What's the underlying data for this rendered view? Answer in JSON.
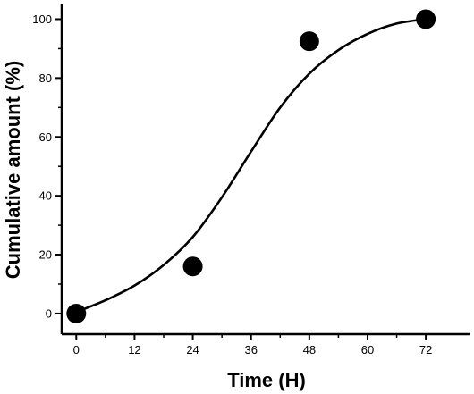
{
  "chart_data": {
    "type": "scatter",
    "xlabel": "Time (H)",
    "ylabel": "Cumulative amount (%)",
    "xlim": [
      -3,
      81
    ],
    "ylim": [
      -7,
      105
    ],
    "xticks": [
      0,
      12,
      24,
      36,
      48,
      60,
      72
    ],
    "yticks": [
      0,
      20,
      40,
      60,
      80,
      100
    ],
    "x_tick_labels": [
      "0",
      "12",
      "24",
      "36",
      "48",
      "60",
      "72"
    ],
    "y_tick_labels": [
      "0",
      "20",
      "40",
      "60",
      "80",
      "100"
    ],
    "series": [
      {
        "type": "scatter",
        "x": [
          0,
          24,
          48,
          72
        ],
        "y": [
          0,
          16,
          92.5,
          100
        ],
        "color": "#000000",
        "marker": "filled-circle"
      },
      {
        "type": "line",
        "x": [
          0,
          6,
          12,
          18,
          24,
          30,
          36,
          42,
          48,
          54,
          60,
          66,
          72
        ],
        "y": [
          0.5,
          4.5,
          9.5,
          16.5,
          26,
          39.5,
          55,
          70,
          81.5,
          89.5,
          95,
          98.5,
          100
        ],
        "color": "#000000",
        "smooth": true
      }
    ],
    "grid": false,
    "legend": "none"
  }
}
